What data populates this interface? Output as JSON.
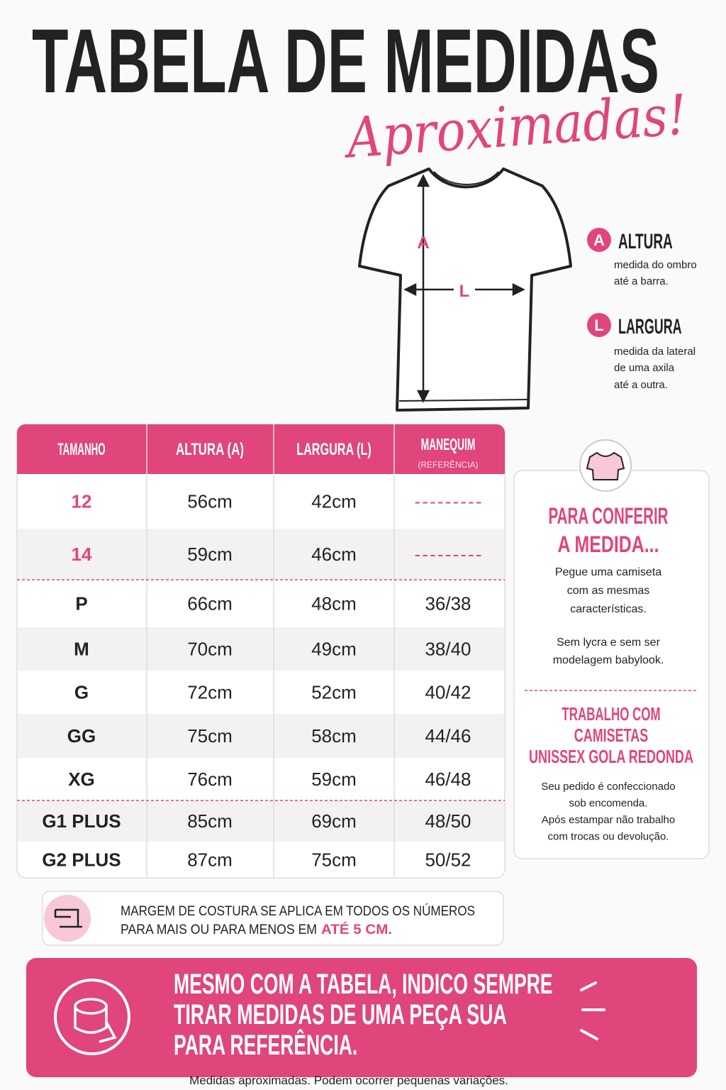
{
  "header": {
    "title": "TABELA DE MEDIDAS",
    "subtitle": "Aproximadas!"
  },
  "diagram": {
    "height_mark": "A",
    "width_mark": "L"
  },
  "legend": [
    {
      "letter": "A",
      "name": "ALTURA",
      "lines": [
        "medida do ombro",
        "até a barra."
      ]
    },
    {
      "letter": "L",
      "name": "LARGURA",
      "lines": [
        "medida da lateral",
        "de uma axila",
        "até a outra."
      ]
    }
  ],
  "table": {
    "headers": [
      "TAMANHO",
      "ALTURA (A)",
      "LARGURA (L)",
      "MANEQUIM"
    ],
    "header_note": "(REFERÊNCIA)",
    "rows": [
      [
        "12",
        "56cm",
        "42cm",
        "---------"
      ],
      [
        "14",
        "59cm",
        "46cm",
        "---------"
      ],
      [
        "P",
        "66cm",
        "48cm",
        "36/38"
      ],
      [
        "M",
        "70cm",
        "49cm",
        "38/40"
      ],
      [
        "G",
        "72cm",
        "52cm",
        "40/42"
      ],
      [
        "GG",
        "75cm",
        "58cm",
        "44/46"
      ],
      [
        "XG",
        "76cm",
        "59cm",
        "46/48"
      ],
      [
        "G1 PLUS",
        "85cm",
        "69cm",
        "48/50"
      ],
      [
        "G2 PLUS",
        "87cm",
        "75cm",
        "50/52"
      ]
    ]
  },
  "side_box": {
    "title": [
      "PARA CONFERIR",
      "A MEDIDA..."
    ],
    "text1": [
      "Pegue uma camiseta",
      "com as mesmas",
      "características."
    ],
    "text2": [
      "Sem lycra e sem ser",
      "modelagem babylook."
    ],
    "title2": [
      "TRABALHO COM",
      "CAMISETAS",
      "UNISSEX GOLA REDONDA"
    ],
    "text3": [
      "Seu pedido é confeccionado",
      "sob encomenda.",
      "Após estampar não trabalho",
      "com trocas ou devolução."
    ]
  },
  "note": {
    "line1": "MARGEM DE COSTURA SE APLICA EM TODOS OS NÚMEROS",
    "line2": "PARA MAIS OU PARA MENOS EM",
    "highlight": "ATÉ 5 CM."
  },
  "banner": {
    "lines": [
      "MESMO COM A TABELA, INDICO SEMPRE",
      "TIRAR MEDIDAS DE UMA PEÇA SUA",
      "PARA REFERÊNCIA."
    ]
  },
  "footer": "Medidas aproximadas. Podem ocorrer pequenas variações."
}
